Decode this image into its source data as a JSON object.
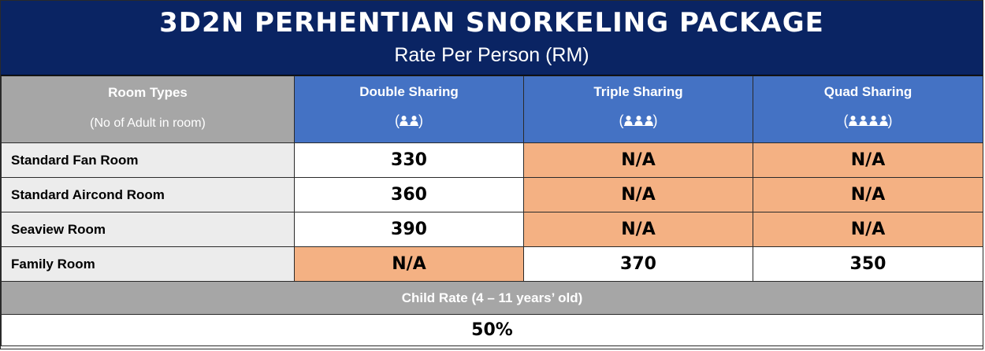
{
  "header": {
    "title": "3D2N PERHENTIAN SNORKELING PACKAGE",
    "subtitle": "Rate Per Person (RM)",
    "bg_color": "#0a2463"
  },
  "table": {
    "room_header": {
      "label": "Room Types",
      "sublabel": "(No of Adult in room)"
    },
    "columns": [
      {
        "label": "Double Sharing",
        "icon": "two-persons-icon",
        "persons": 2
      },
      {
        "label": "Triple Sharing",
        "icon": "three-persons-icon",
        "persons": 3
      },
      {
        "label": "Quad Sharing",
        "icon": "four-persons-icon",
        "persons": 4
      }
    ],
    "rows": [
      {
        "room": "Standard Fan Room",
        "cells": [
          "330",
          "N/A",
          "N/A"
        ]
      },
      {
        "room": "Standard Aircond Room",
        "cells": [
          "360",
          "N/A",
          "N/A"
        ]
      },
      {
        "room": "Seaview Room",
        "cells": [
          "390",
          "N/A",
          "N/A"
        ]
      },
      {
        "room": "Family Room",
        "cells": [
          "N/A",
          "370",
          "350"
        ]
      }
    ],
    "child_rate": {
      "label": "Child Rate (4 – 11 years’ old)",
      "value": "50%"
    }
  },
  "colors": {
    "header_blue": "#4472c4",
    "header_grey": "#a6a6a6",
    "na_fill": "#f4b183",
    "room_name_fill": "#ececec"
  }
}
